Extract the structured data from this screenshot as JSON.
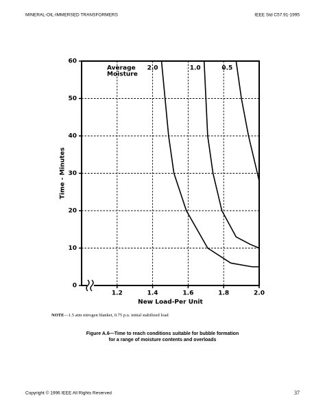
{
  "header": {
    "left": "MINERAL-OIL-IMMERSED TRANSFORMERS",
    "right": "IEEE Std C57.91-1995"
  },
  "chart_data": {
    "type": "line",
    "x_label": "New Load-Per Unit",
    "y_label": "Time - Minutes",
    "legend_title": [
      "Average",
      "Moisture"
    ],
    "xlim": [
      1.0,
      2.0
    ],
    "xticks": [
      1.2,
      1.4,
      1.6,
      1.8,
      {
        "value": 2.0,
        "label": "2.0"
      }
    ],
    "ylim": [
      0,
      60
    ],
    "yticks": [
      0,
      10,
      20,
      30,
      40,
      50,
      60
    ],
    "grid": true,
    "x_axis_break": true,
    "series": [
      {
        "name": "2.0",
        "color": "#000000",
        "x": [
          1.45,
          1.47,
          1.49,
          1.52,
          1.59,
          1.71,
          1.84,
          1.96,
          2.0
        ],
        "values": [
          60,
          50,
          40,
          30,
          20,
          10,
          6,
          5,
          5
        ]
      },
      {
        "name": "1.0",
        "color": "#000000",
        "x": [
          1.69,
          1.7,
          1.71,
          1.74,
          1.79,
          1.87,
          1.95,
          2.0
        ],
        "values": [
          60,
          50,
          40,
          30,
          20,
          13,
          11,
          10
        ]
      },
      {
        "name": "0.5",
        "color": "#000000",
        "x": [
          1.87,
          1.9,
          1.94,
          1.99,
          2.0
        ],
        "values": [
          60,
          50,
          40,
          30,
          28
        ]
      }
    ]
  },
  "note": {
    "label": "NOTE",
    "text": "—1.5 atm nitrogen blanket, 0.75 p.u. initial stabilized load"
  },
  "caption": [
    "Figure A.6—Time to reach conditions suitable for bubble formation",
    "for a range of moisture contents and overloads"
  ],
  "footer": {
    "left": "Copyright © 1996 IEEE All Rights Reserved",
    "page": "37"
  }
}
